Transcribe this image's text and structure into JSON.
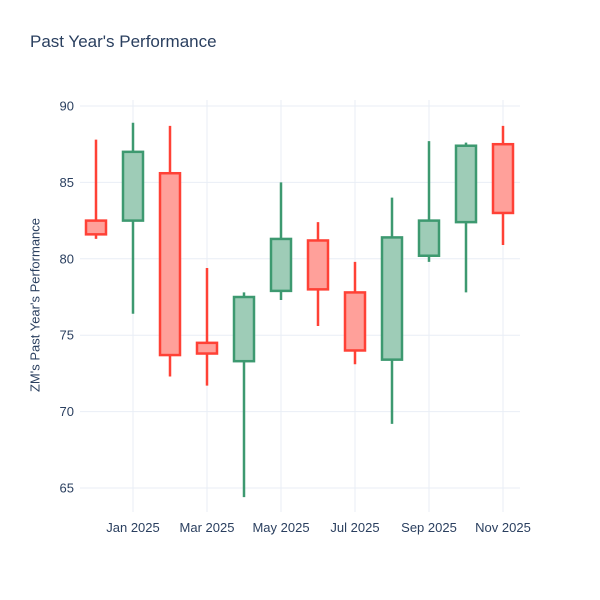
{
  "page": {
    "title": "Past Year's Performance"
  },
  "chart_data": {
    "type": "candlestick",
    "title": "Past Year's Performance",
    "xlabel": "",
    "ylabel": "ZM's Past Year's Performance",
    "ticker": "ZM",
    "categories": [
      "Dec 2024",
      "Jan 2025",
      "Feb 2025",
      "Mar 2025",
      "Apr 2025",
      "May 2025",
      "Jun 2025",
      "Jul 2025",
      "Aug 2025",
      "Sep 2025",
      "Oct 2025",
      "Nov 2025"
    ],
    "candles": [
      {
        "label": "Dec 2024",
        "open": 82.5,
        "high": 87.8,
        "low": 81.3,
        "close": 81.6
      },
      {
        "label": "Jan 2025",
        "open": 82.5,
        "high": 88.9,
        "low": 76.4,
        "close": 87.0
      },
      {
        "label": "Feb 2025",
        "open": 85.6,
        "high": 88.7,
        "low": 72.3,
        "close": 73.7
      },
      {
        "label": "Mar 2025",
        "open": 74.5,
        "high": 79.4,
        "low": 71.7,
        "close": 73.8
      },
      {
        "label": "Apr 2025",
        "open": 73.3,
        "high": 77.8,
        "low": 64.4,
        "close": 77.5
      },
      {
        "label": "May 2025",
        "open": 77.9,
        "high": 85.0,
        "low": 77.3,
        "close": 81.3
      },
      {
        "label": "Jun 2025",
        "open": 81.2,
        "high": 82.4,
        "low": 75.6,
        "close": 78.0
      },
      {
        "label": "Jul 2025",
        "open": 77.8,
        "high": 79.8,
        "low": 73.1,
        "close": 74.0
      },
      {
        "label": "Aug 2025",
        "open": 73.4,
        "high": 84.0,
        "low": 69.2,
        "close": 81.4
      },
      {
        "label": "Sep 2025",
        "open": 80.2,
        "high": 87.7,
        "low": 79.8,
        "close": 82.5
      },
      {
        "label": "Oct 2025",
        "open": 82.4,
        "high": 87.6,
        "low": 77.8,
        "close": 87.4
      },
      {
        "label": "Nov 2025",
        "open": 87.5,
        "high": 88.7,
        "low": 80.9,
        "close": 83.0
      }
    ],
    "x_tick_labels": [
      "Jan 2025",
      "Mar 2025",
      "May 2025",
      "Jul 2025",
      "Sep 2025",
      "Nov 2025"
    ],
    "x_tick_indices": [
      1,
      3,
      5,
      7,
      9,
      11
    ],
    "y_ticks": [
      65,
      70,
      75,
      80,
      85,
      90
    ],
    "ylim": [
      63.5,
      90.5
    ],
    "grid": true,
    "legend_position": "none",
    "colors": {
      "increasing_line": "#3D9970",
      "increasing_fill": "#9ECCB7",
      "decreasing_line": "#FF4136",
      "decreasing_fill": "#FFA09A",
      "gridline": "#E9EEF6",
      "text": "#2A3F5F",
      "background": "#FFFFFF"
    }
  }
}
